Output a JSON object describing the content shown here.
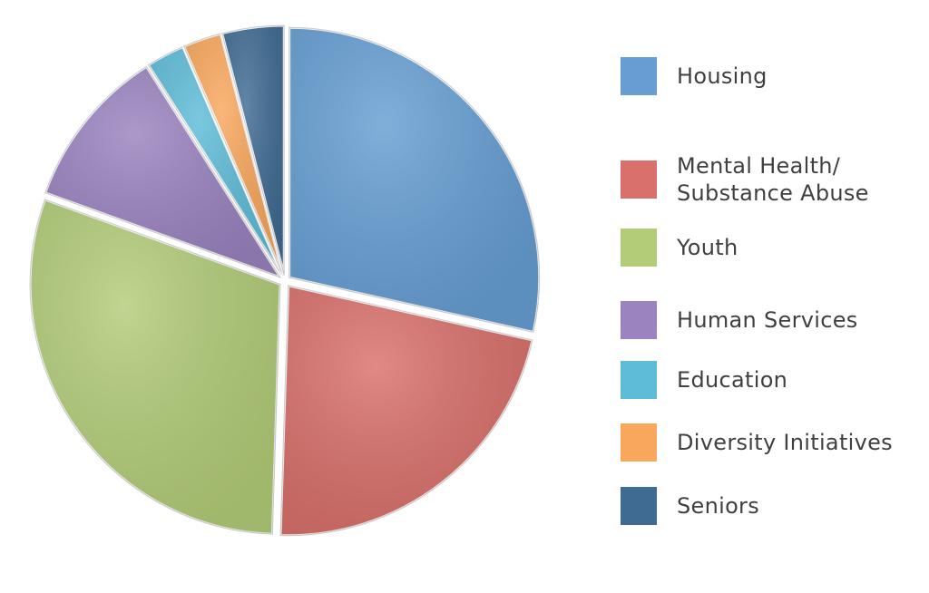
{
  "chart_data": {
    "type": "pie",
    "title": "",
    "legend_position": "right",
    "slices": [
      {
        "label": "Housing",
        "value": 28.5,
        "color": "#669ED3"
      },
      {
        "label": "Mental Health/\nSubstance Abuse",
        "value": 22.0,
        "color": "#D9706B"
      },
      {
        "label": "Youth",
        "value": 30.0,
        "color": "#B2CC78"
      },
      {
        "label": "Human Services",
        "value": 10.5,
        "color": "#9A83BF"
      },
      {
        "label": "Education",
        "value": 2.5,
        "color": "#5DBCD8"
      },
      {
        "label": "Diversity Initiatives",
        "value": 2.5,
        "color": "#F9A75C"
      },
      {
        "label": "Seniors",
        "value": 4.0,
        "color": "#3F6B93"
      }
    ]
  }
}
